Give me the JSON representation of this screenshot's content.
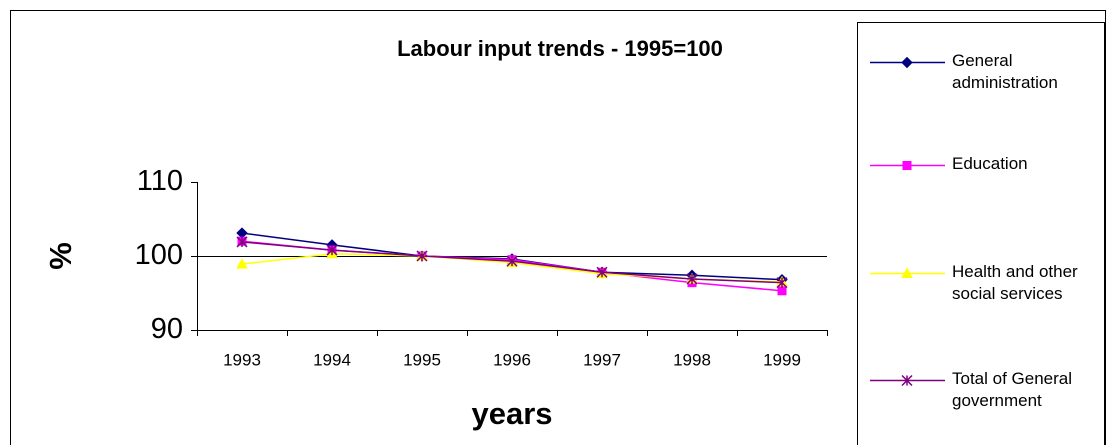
{
  "chart_data": {
    "type": "line",
    "title": "Labour input trends - 1995=100",
    "x_label": "years",
    "y_label": "%",
    "categories": [
      "1993",
      "1994",
      "1995",
      "1996",
      "1997",
      "1998",
      "1999"
    ],
    "series": [
      {
        "name": "General administration",
        "color": "#000080",
        "marker": "diamond",
        "values": [
          103.1,
          101.5,
          100,
          99.6,
          97.8,
          97.4,
          96.8
        ]
      },
      {
        "name": "Education",
        "color": "#ff00ff",
        "marker": "square",
        "values": [
          102,
          100.8,
          100,
          99.5,
          97.8,
          96.4,
          95.3
        ]
      },
      {
        "name": "Health and other social services",
        "color": "#ffff00",
        "marker": "triangle",
        "values": [
          98.9,
          100.3,
          100,
          99.1,
          97.6,
          96.9,
          96.5
        ]
      },
      {
        "name": "Total of General government",
        "color": "#800080",
        "marker": "asterisk",
        "values": [
          101.9,
          100.8,
          100,
          99.3,
          97.8,
          96.9,
          96.4
        ]
      }
    ],
    "ylim": [
      90,
      110
    ],
    "yticks": [
      90,
      100,
      110
    ],
    "grid": true,
    "legend": "right"
  }
}
